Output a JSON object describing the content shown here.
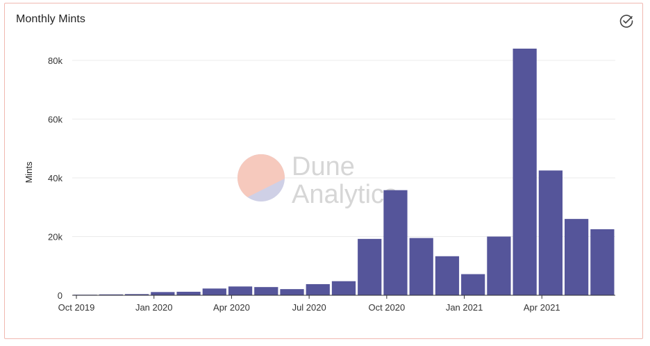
{
  "panel": {
    "title": "Monthly Mints",
    "status_icon": "check-circle-icon"
  },
  "watermark": {
    "line1": "Dune",
    "line2": "Analytics"
  },
  "colors": {
    "bar": "#55559a",
    "grid": "#ebebeb",
    "axis": "#333333",
    "border": "#f0b8b0",
    "logo_top": "#f6c9bd",
    "logo_bottom": "#cfd0e6"
  },
  "chart_data": {
    "type": "bar",
    "title": "Monthly Mints",
    "xlabel": "",
    "ylabel": "Mints",
    "ylim": [
      0,
      84000
    ],
    "yticks": [
      0,
      20000,
      40000,
      60000,
      80000
    ],
    "ytick_labels": [
      "0",
      "20k",
      "40k",
      "60k",
      "80k"
    ],
    "xtick_labels": [
      "Oct 2019",
      "Jan 2020",
      "Apr 2020",
      "Jul 2020",
      "Oct 2020",
      "Jan 2021",
      "Apr 2021"
    ],
    "xtick_positions": [
      0,
      3,
      6,
      9,
      12,
      15,
      18
    ],
    "grid": true,
    "categories": [
      "2019-10",
      "2019-11",
      "2019-12",
      "2020-01",
      "2020-02",
      "2020-03",
      "2020-04",
      "2020-05",
      "2020-06",
      "2020-07",
      "2020-08",
      "2020-09",
      "2020-10",
      "2020-11",
      "2020-12",
      "2021-01",
      "2021-02",
      "2021-03",
      "2021-04",
      "2021-05",
      "2021-06"
    ],
    "values": [
      200,
      300,
      400,
      1100,
      1200,
      2300,
      3000,
      2800,
      2100,
      3800,
      4800,
      19200,
      35800,
      19500,
      13300,
      7200,
      20000,
      84000,
      42500,
      26000,
      22500
    ]
  }
}
